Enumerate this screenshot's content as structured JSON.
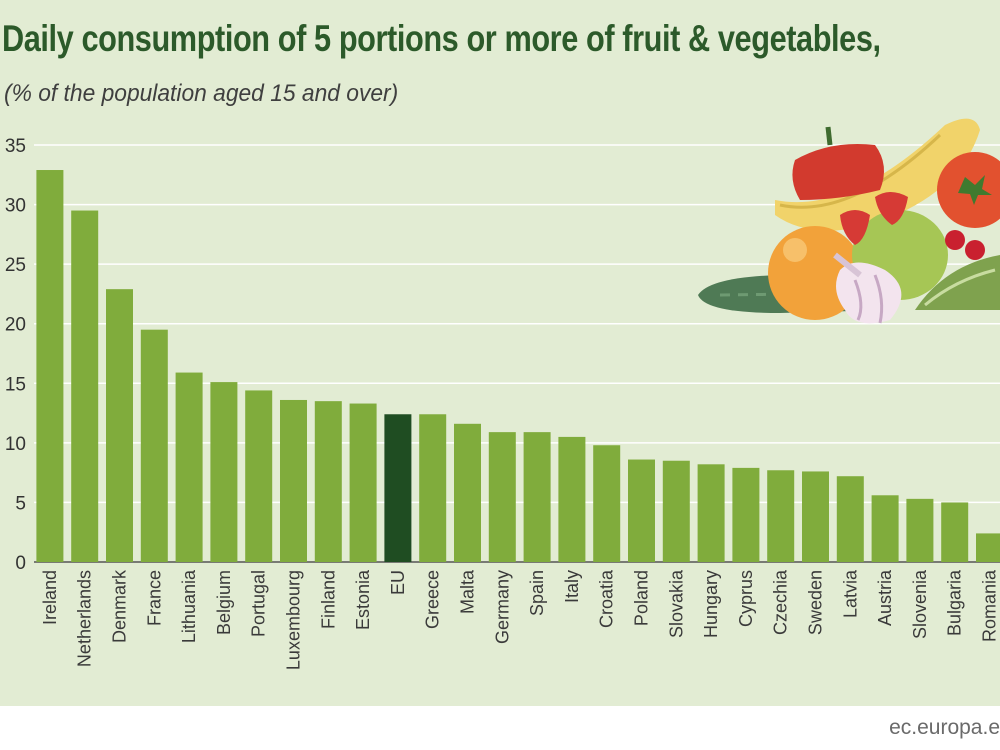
{
  "title": "Daily consumption of 5 portions or more of fruit & vegetables,",
  "subtitle": "(% of  the population aged 15 and over)",
  "source": "ec.europa.e",
  "colors": {
    "bar": "#80ac3c",
    "highlight": "#1f4d22",
    "background": "#e2ecd3",
    "title": "#2c5a2a"
  },
  "icons": [
    "fruit-vegetables-illustration"
  ],
  "chart_data": {
    "type": "bar",
    "categories": [
      "Ireland",
      "Netherlands",
      "Denmark",
      "France",
      "Lithuania",
      "Belgium",
      "Portugal",
      "Luxembourg",
      "Finland",
      "Estonia",
      "EU",
      "Greece",
      "Malta",
      "Germany",
      "Spain",
      "Italy",
      "Croatia",
      "Poland",
      "Slovakia",
      "Hungary",
      "Cyprus",
      "Czechia",
      "Sweden",
      "Latvia",
      "Austria",
      "Slovenia",
      "Bulgaria",
      "Romania"
    ],
    "values": [
      32.9,
      29.5,
      22.9,
      19.5,
      15.9,
      15.1,
      14.4,
      13.6,
      13.5,
      13.3,
      12.4,
      12.4,
      11.6,
      10.9,
      10.9,
      10.5,
      9.8,
      8.6,
      8.5,
      8.2,
      7.9,
      7.7,
      7.6,
      7.2,
      5.6,
      5.3,
      5.0,
      2.4
    ],
    "highlight": "EU",
    "yticks": [
      0,
      5,
      10,
      15,
      20,
      25,
      30,
      35
    ],
    "ylim": [
      0,
      35
    ],
    "grid": true
  }
}
